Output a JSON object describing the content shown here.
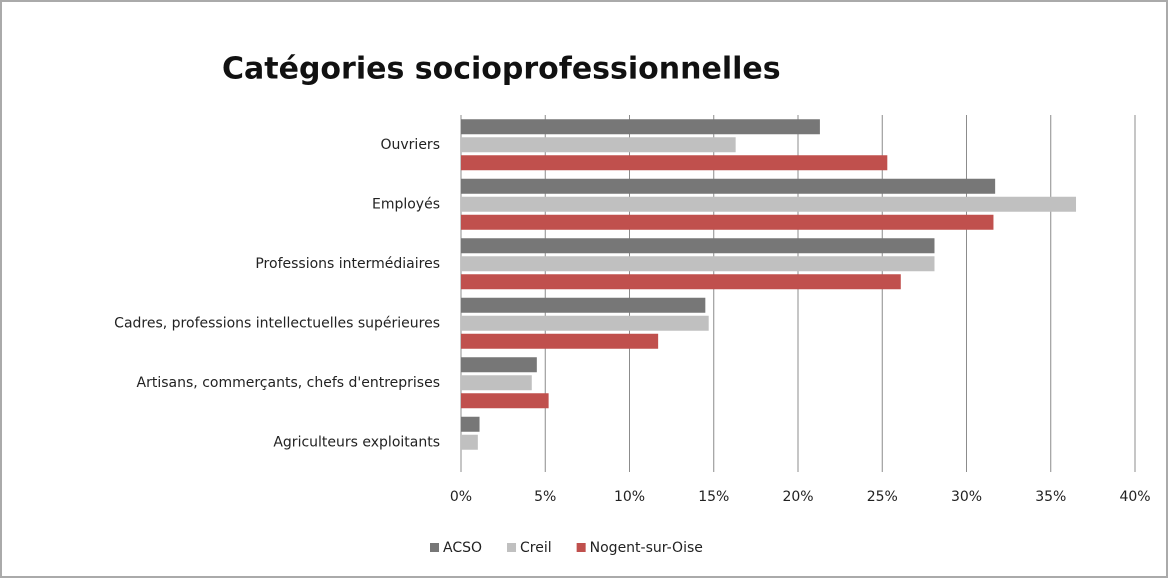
{
  "chart_data": {
    "type": "hbar",
    "title": "Catégories socioprofessionnelles",
    "categories": [
      "Ouvriers",
      "Employés",
      "Professions intermédiaires",
      "Cadres, professions intellectuelles supérieures",
      "Artisans, commerçants, chefs d'entreprises",
      "Agriculteurs exploitants"
    ],
    "series": [
      {
        "name": "ACSO",
        "color": "#777777",
        "values": [
          21.3,
          31.7,
          28.1,
          14.5,
          4.5,
          1.1
        ]
      },
      {
        "name": "Creil",
        "color": "#c0c0c0",
        "values": [
          16.3,
          36.5,
          28.1,
          14.7,
          4.2,
          1.0
        ]
      },
      {
        "name": "Nogent-sur-Oise",
        "color": "#c0504d",
        "values": [
          25.3,
          31.6,
          26.1,
          11.7,
          5.2,
          0
        ]
      }
    ],
    "xlim": [
      0,
      40
    ],
    "xticks": [
      {
        "value": 0,
        "label": "0%"
      },
      {
        "value": 5,
        "label": "5%"
      },
      {
        "value": 10,
        "label": "10%"
      },
      {
        "value": 15,
        "label": "15%"
      },
      {
        "value": 20,
        "label": "20%"
      },
      {
        "value": 25,
        "label": "25%"
      },
      {
        "value": 30,
        "label": "30%"
      },
      {
        "value": 35,
        "label": "35%"
      },
      {
        "value": 40,
        "label": "40%"
      }
    ],
    "grid": true,
    "legend": "bottom"
  }
}
